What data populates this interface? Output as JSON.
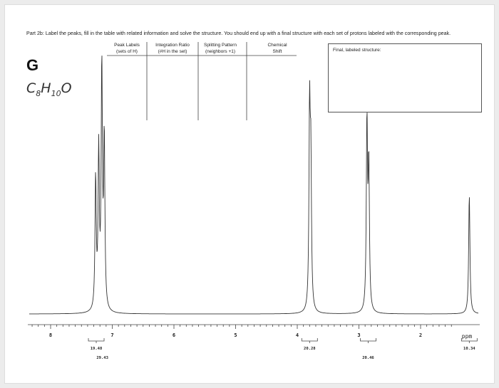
{
  "instructions": "Part 2b: Label the peaks, fill in the table with related information and solve the structure. You should end up with a final structure with each set of protons labeled with the corresponding peak.",
  "compound": {
    "label": "G",
    "formula": [
      "C",
      "8",
      "H",
      "10",
      "O"
    ]
  },
  "table": {
    "headers": [
      [
        "Peak Labels",
        "(sets of H)"
      ],
      [
        "Integration Ratio",
        "(#H in the set)"
      ],
      [
        "Splitting Pattern",
        "(neighbors +1)"
      ],
      [
        "Chemical",
        "Shift"
      ]
    ]
  },
  "structure_box": {
    "label": "Final, labeled structure:"
  },
  "spectrum": {
    "x_ticks": [
      8,
      7,
      6,
      5,
      4,
      3,
      2
    ],
    "unit": "ppm",
    "integrations": [
      19.48,
      29.43,
      20.28,
      20.46,
      10.34
    ]
  }
}
